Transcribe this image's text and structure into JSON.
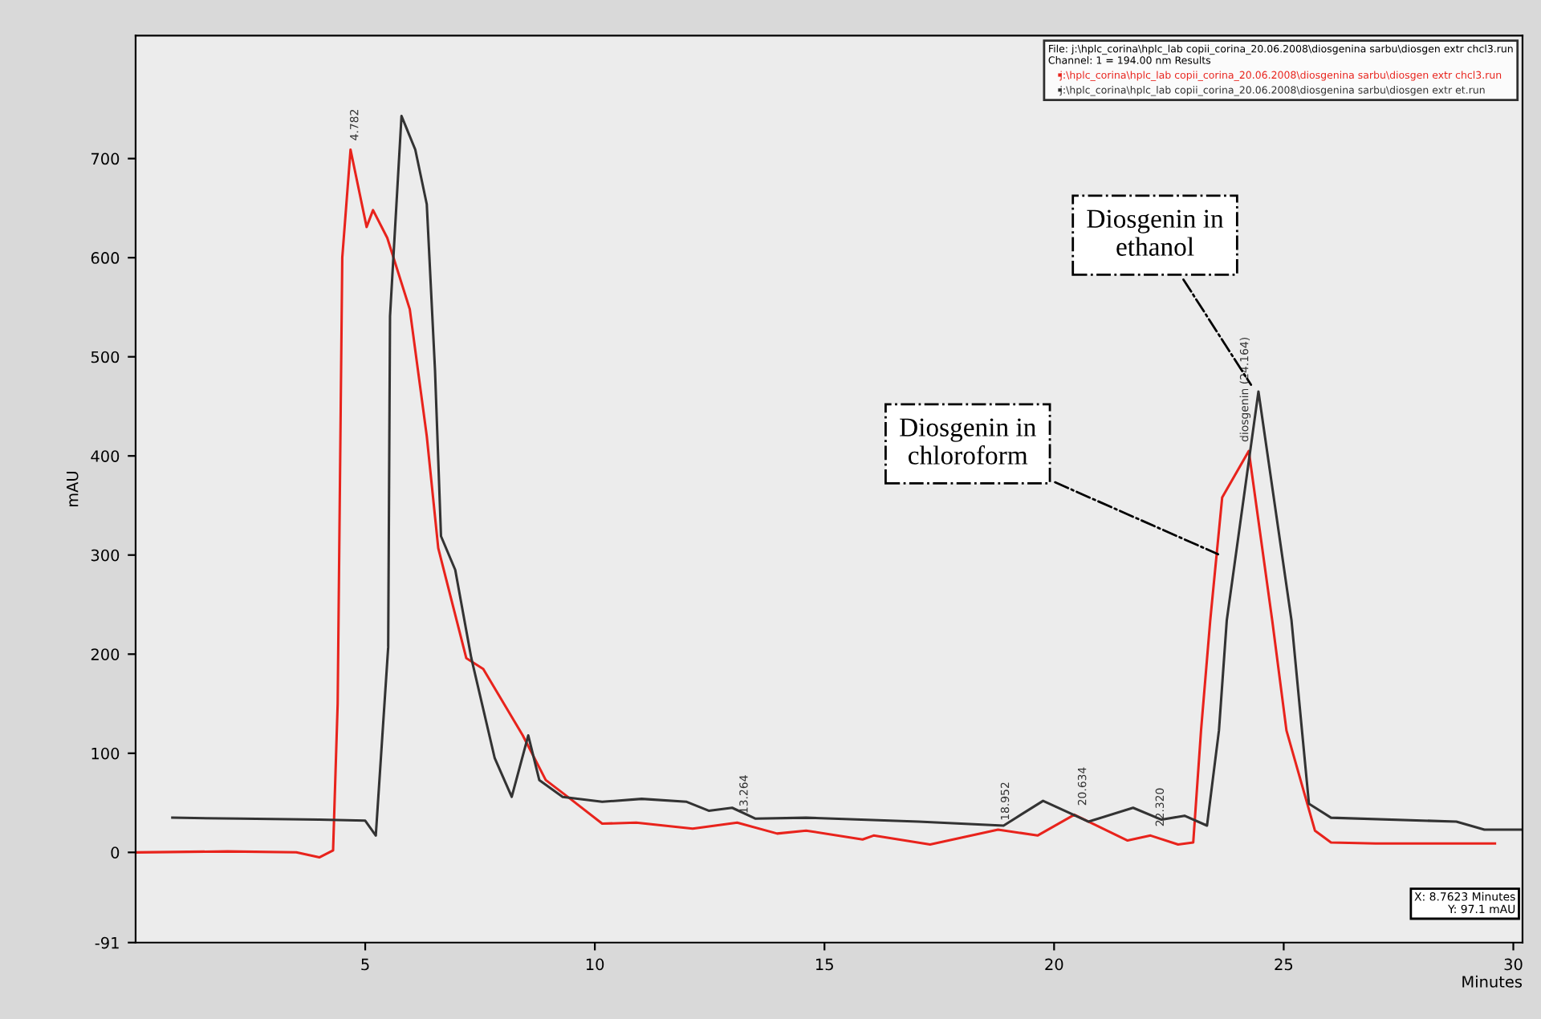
{
  "chart_data": {
    "type": "line",
    "xlabel": "Minutes",
    "ylabel": "mAU",
    "xlim": [
      0,
      30.2
    ],
    "ylim": [
      -91,
      824
    ],
    "xticks": [
      5,
      10,
      15,
      20,
      25,
      30
    ],
    "yticks": [
      -91,
      0,
      100,
      200,
      300,
      400,
      500,
      600,
      700
    ],
    "grid": false,
    "legend": "top right",
    "marker": "none",
    "line_style": "solid",
    "legend_title": "File: j:\\hplc_corina\\hplc_lab copii_corina_20.06.2008\\diosgenina sarbu\\diosgen extr chcl3.run\nChannel: 1 = 194.00 nm Results",
    "series": [
      {
        "name": "j:\\hplc_corina\\hplc_lab copii_corina_20.06.2008\\diosgenina sarbu\\diosgen extr chcl3.run",
        "color": "#e8231c",
        "x": [
          0,
          2,
          3.5,
          4.0,
          4.3,
          4.4,
          4.5,
          4.68,
          5.03,
          5.17,
          5.48,
          5.97,
          6.34,
          6.59,
          7.2,
          7.57,
          8.43,
          8.93,
          9.41,
          10.16,
          10.9,
          12.13,
          13.1,
          13.97,
          14.6,
          15.83,
          16.07,
          17.3,
          18.78,
          19.64,
          20.44,
          21.6,
          22.1,
          22.7,
          23.03,
          23.2,
          23.4,
          23.66,
          24.24,
          24.75,
          25.06,
          25.68,
          26.03,
          27.0,
          29.6
        ],
        "values": [
          0,
          1,
          0,
          -5,
          2,
          150,
          600,
          709,
          631,
          648,
          620,
          548,
          420,
          307,
          196,
          185,
          118,
          73,
          56,
          29,
          30,
          24,
          30,
          19,
          22,
          13,
          17,
          8,
          23,
          17,
          38,
          12,
          17,
          8,
          10,
          123,
          234,
          358,
          405,
          234,
          123,
          22,
          10,
          9,
          9
        ]
      },
      {
        "name": "j:\\hplc_corina\\hplc_lab copii_corina_20.06.2008\\diosgenina sarbu\\diosgen extr et.run",
        "color": "#333333",
        "x": [
          0.8,
          2.28,
          4.0,
          5.0,
          5.23,
          5.5,
          5.54,
          5.79,
          6.09,
          6.34,
          6.52,
          6.65,
          6.96,
          7.31,
          7.82,
          8.19,
          8.55,
          8.79,
          9.3,
          10.16,
          11.02,
          12.0,
          12.48,
          12.99,
          13.5,
          14.6,
          17.05,
          18.9,
          19.76,
          20.75,
          21.72,
          22.34,
          22.84,
          23.33,
          23.59,
          23.76,
          24.45,
          25.17,
          25.55,
          26.03,
          28.76,
          29.37,
          30.2
        ],
        "values": [
          35,
          34,
          33,
          32,
          17,
          207,
          541,
          743,
          709,
          654,
          486,
          319,
          285,
          196,
          95,
          56,
          118,
          73,
          56,
          51,
          54,
          51,
          42,
          45,
          34,
          35,
          31,
          27,
          52,
          31,
          45,
          33,
          37,
          27,
          123,
          234,
          465,
          234,
          49,
          35,
          31,
          23,
          23
        ]
      }
    ],
    "annotations": [
      {
        "text": "4.782",
        "x": 4.78,
        "y": 709
      },
      {
        "text": "13.264",
        "x": 13.26,
        "y": 30
      },
      {
        "text": "18.952",
        "x": 18.95,
        "y": 23
      },
      {
        "text": "20.634",
        "x": 20.63,
        "y": 38
      },
      {
        "text": "22.320",
        "x": 22.32,
        "y": 17
      },
      {
        "text": "diosgenin (24.164)",
        "x": 24.16,
        "y": 405
      },
      {
        "text": "Diosgenin in\nethanol",
        "x": 24.34,
        "y": 468
      },
      {
        "text": "Diosgenin in\nchloroform",
        "x": 23.66,
        "y": 299
      },
      "X: 8.7623 Minutes\nY: 97.1 mAU"
    ]
  }
}
